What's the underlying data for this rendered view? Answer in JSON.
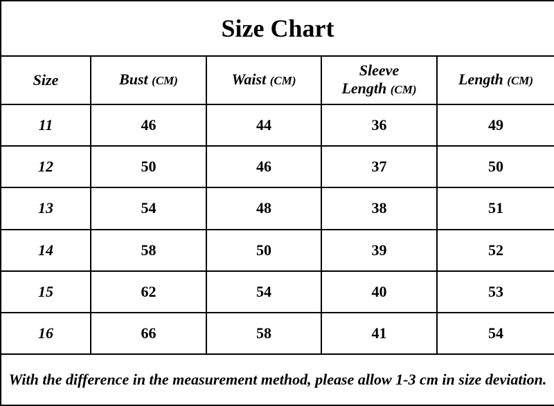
{
  "title": "Size Chart",
  "table": {
    "columns": [
      {
        "name": "Size"
      },
      {
        "name": "Bust",
        "unit": "(CM)"
      },
      {
        "name": "Waist",
        "unit": "(CM)"
      },
      {
        "name": "Sleeve Length",
        "unit": "(CM)"
      },
      {
        "name": "Length",
        "unit": "(CM)"
      }
    ],
    "rows": [
      [
        11,
        46,
        44,
        36,
        49
      ],
      [
        12,
        50,
        46,
        37,
        50
      ],
      [
        13,
        54,
        48,
        38,
        51
      ],
      [
        14,
        58,
        50,
        39,
        52
      ],
      [
        15,
        62,
        54,
        40,
        53
      ],
      [
        16,
        66,
        58,
        41,
        54
      ]
    ]
  },
  "note": "With the difference in the measurement method, please allow 1-3 cm in size deviation."
}
